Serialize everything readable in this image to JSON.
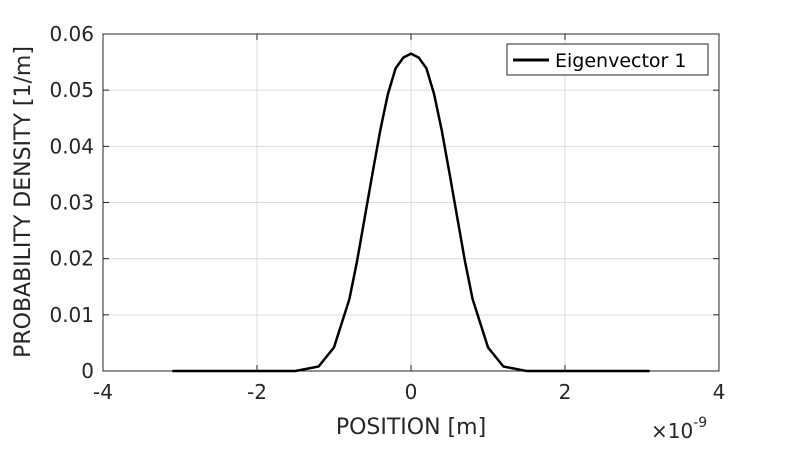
{
  "chart_data": {
    "type": "line",
    "xlabel": "POSITION  [m]",
    "ylabel": "PROBABILITY DENSITY  [1/m]",
    "x_exponent_label": {
      "base": "×10",
      "exponent": "-9"
    },
    "xlim": [
      -4,
      4
    ],
    "ylim": [
      0,
      0.06
    ],
    "x_ticks": [
      -4,
      -2,
      0,
      2,
      4
    ],
    "y_ticks": [
      0,
      0.01,
      0.02,
      0.03,
      0.04,
      0.05,
      0.06
    ],
    "x_tick_labels": [
      "-4",
      "-2",
      "0",
      "2",
      "4"
    ],
    "y_tick_labels": [
      "0",
      "0.01",
      "0.02",
      "0.03",
      "0.04",
      "0.05",
      "0.06"
    ],
    "grid": true,
    "legend_position": "top-right",
    "series": [
      {
        "name": "Eigenvector 1",
        "color": "#000000",
        "x": [
          -3.1,
          -2.0,
          -1.5,
          -1.2,
          -1.0,
          -0.8,
          -0.7,
          -0.6,
          -0.5,
          -0.4,
          -0.3,
          -0.2,
          -0.1,
          0.0,
          0.1,
          0.2,
          0.3,
          0.4,
          0.5,
          0.6,
          0.7,
          0.8,
          1.0,
          1.2,
          1.5,
          2.0,
          3.1
        ],
        "y": [
          0.0,
          0.0,
          0.0,
          0.0008,
          0.0042,
          0.0128,
          0.0196,
          0.0274,
          0.0352,
          0.0428,
          0.0493,
          0.0539,
          0.0558,
          0.0565,
          0.0558,
          0.0539,
          0.0493,
          0.0428,
          0.0352,
          0.0274,
          0.0196,
          0.0128,
          0.0042,
          0.0008,
          0.0,
          0.0,
          0.0
        ]
      }
    ]
  }
}
